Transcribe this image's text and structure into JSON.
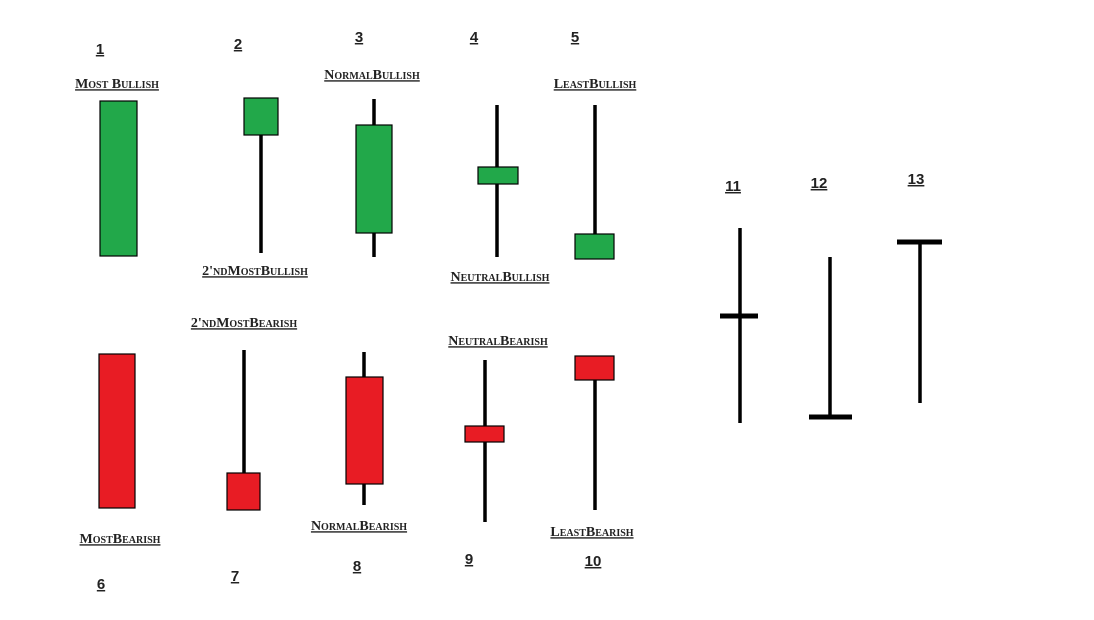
{
  "candles": [
    {
      "number": 1,
      "label": "Most Bullish"
    },
    {
      "number": 2,
      "label": "2'ndMostBullish"
    },
    {
      "number": 3,
      "label": "NormalBullish"
    },
    {
      "number": 4,
      "label": "NeutralBullish"
    },
    {
      "number": 5,
      "label": "LeastBullish"
    },
    {
      "number": 6,
      "label": "MostBearish"
    },
    {
      "number": 7,
      "label": "2'ndMostBearish"
    },
    {
      "number": 8,
      "label": "NormalBearish"
    },
    {
      "number": 9,
      "label": "NeutralBearish"
    },
    {
      "number": 10,
      "label": "LeastBearish"
    },
    {
      "number": 11
    },
    {
      "number": 12
    },
    {
      "number": 13
    }
  ]
}
